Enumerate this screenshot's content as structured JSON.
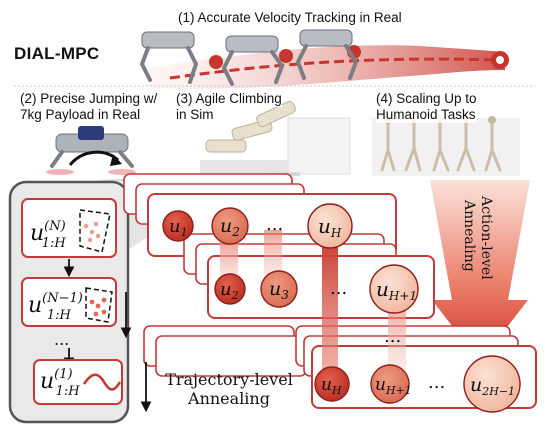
{
  "header": {
    "brand": "DIAL-MPC",
    "tasks": [
      {
        "label": "(1) Accurate Velocity Tracking in Real"
      },
      {
        "label_line1": "(2) Precise Jumping w/",
        "label_line2": "7kg Payload in Real"
      },
      {
        "label_line1": "(3) Agile Climbing",
        "label_line2": "in Sim"
      },
      {
        "label_line1": "(4) Scaling Up to",
        "label_line2": "Humanoid Tasks"
      }
    ]
  },
  "trajectory_panel": {
    "items": [
      {
        "base": "u",
        "sup": "(N)",
        "sub": "1:H"
      },
      {
        "base": "u",
        "sup": "(N−1)",
        "sub": "1:H"
      },
      {
        "text": "..."
      },
      {
        "base": "u",
        "sup": "(1)",
        "sub": "1:H"
      }
    ]
  },
  "action_rows": [
    {
      "tokens": [
        {
          "base": "u",
          "sub": "1"
        },
        {
          "base": "u",
          "sub": "2"
        },
        {
          "text": "..."
        },
        {
          "base": "u",
          "sub": "H"
        }
      ]
    },
    {
      "tokens": [
        {
          "base": "u",
          "sub": "2"
        },
        {
          "base": "u",
          "sub": "3"
        },
        {
          "text": "..."
        },
        {
          "base": "u",
          "sub": "H+1"
        }
      ]
    },
    {
      "tokens": [
        {
          "base": "u",
          "sub": "H"
        },
        {
          "base": "u",
          "sub": "H+1"
        },
        {
          "text": "..."
        },
        {
          "base": "u",
          "sub": "2H−1"
        }
      ]
    }
  ],
  "annotations": {
    "between_rows_dots": "...",
    "action_level_line1": "Action-level",
    "action_level_line2": "Annealing",
    "trajectory_level_line1": "Trajectory-level",
    "trajectory_level_line2": "Annealing"
  },
  "colors": {
    "frame_red": "#c23b3b",
    "circle_dark": "#c8352c",
    "circle_light": "#f3c6b0",
    "panel_fill": "#e9e9e9",
    "panel_border": "#555555",
    "arrow_red": "#d43a2c"
  }
}
